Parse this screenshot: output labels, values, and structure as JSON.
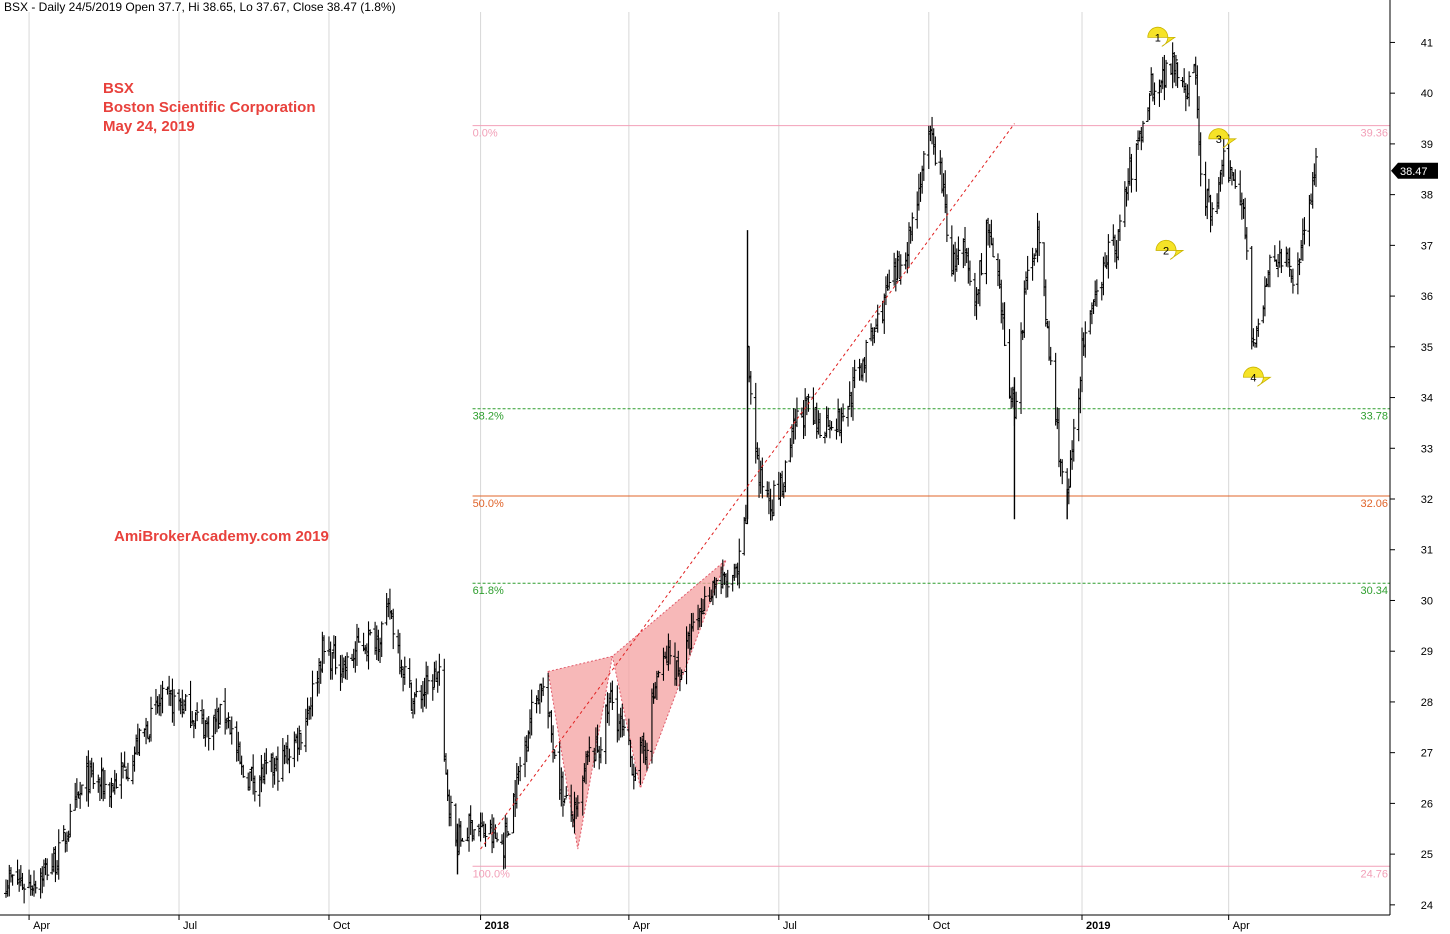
{
  "header": {
    "info": "BSX - Daily 24/5/2019 Open 37.7, Hi 38.65, Lo 37.67, Close 38.47 (1.8%)"
  },
  "title": {
    "symbol": "BSX",
    "company": "Boston Scientific Corporation",
    "date": "May 24, 2019"
  },
  "watermark": "AmiBrokerAcademy.com  2019",
  "colors": {
    "price": "#000000",
    "title": "#e8413c",
    "fib_pink": "#f2a0b8",
    "fib_green": "#2e9e2e",
    "fib_orange": "#e0642a",
    "wedge_fill": "#f4a0a0",
    "marker": "#f6e327",
    "grid": "#d8d8d8"
  },
  "chart_data": {
    "type": "ohlc",
    "y_axis_position": "right",
    "ylim": [
      23.8,
      41.6
    ],
    "y_ticks": [
      24,
      25,
      26,
      27,
      28,
      29,
      30,
      31,
      32,
      33,
      34,
      35,
      36,
      37,
      38,
      39,
      40,
      41
    ],
    "x_ticks": [
      {
        "label": "Apr",
        "date": "2017-04-03",
        "bold": false
      },
      {
        "label": "Jul",
        "date": "2017-07-03",
        "bold": false
      },
      {
        "label": "Oct",
        "date": "2017-10-02",
        "bold": false
      },
      {
        "label": "2018",
        "date": "2018-01-02",
        "bold": true
      },
      {
        "label": "Apr",
        "date": "2018-04-02",
        "bold": false
      },
      {
        "label": "Jul",
        "date": "2018-07-02",
        "bold": false
      },
      {
        "label": "Oct",
        "date": "2018-10-01",
        "bold": false
      },
      {
        "label": "2019",
        "date": "2019-01-02",
        "bold": true
      },
      {
        "label": "Apr",
        "date": "2019-04-01",
        "bold": false
      }
    ],
    "price_path": [
      [
        "2017-03-20",
        24.5
      ],
      [
        "2017-04-03",
        24.4
      ],
      [
        "2017-04-20",
        24.9
      ],
      [
        "2017-05-01",
        25.9
      ],
      [
        "2017-05-08",
        26.5
      ],
      [
        "2017-05-22",
        26.3
      ],
      [
        "2017-06-01",
        26.7
      ],
      [
        "2017-06-12",
        27.4
      ],
      [
        "2017-06-22",
        28.0
      ],
      [
        "2017-07-03",
        28.0
      ],
      [
        "2017-07-10",
        27.8
      ],
      [
        "2017-07-20",
        27.5
      ],
      [
        "2017-08-01",
        27.8
      ],
      [
        "2017-08-10",
        26.6
      ],
      [
        "2017-08-18",
        26.5
      ],
      [
        "2017-09-01",
        26.7
      ],
      [
        "2017-09-15",
        27.4
      ],
      [
        "2017-09-22",
        28.2
      ],
      [
        "2017-09-28",
        29.0
      ],
      [
        "2017-10-02",
        28.9
      ],
      [
        "2017-10-13",
        28.7
      ],
      [
        "2017-10-20",
        29.1
      ],
      [
        "2017-11-01",
        29.3
      ],
      [
        "2017-11-08",
        29.8
      ],
      [
        "2017-11-15",
        28.8
      ],
      [
        "2017-11-22",
        28.0
      ],
      [
        "2017-12-01",
        28.3
      ],
      [
        "2017-12-08",
        28.6
      ],
      [
        "2017-12-11",
        26.7
      ],
      [
        "2017-12-18",
        25.2
      ],
      [
        "2017-12-28",
        25.6
      ],
      [
        "2018-01-05",
        25.4
      ],
      [
        "2018-01-16",
        25.2
      ],
      [
        "2018-01-24",
        26.4
      ],
      [
        "2018-02-01",
        27.7
      ],
      [
        "2018-02-08",
        28.4
      ],
      [
        "2018-02-15",
        27.2
      ],
      [
        "2018-02-22",
        26.0
      ],
      [
        "2018-03-01",
        25.7
      ],
      [
        "2018-03-08",
        26.9
      ],
      [
        "2018-03-15",
        27.1
      ],
      [
        "2018-03-22",
        28.1
      ],
      [
        "2018-03-29",
        27.4
      ],
      [
        "2018-04-05",
        26.7
      ],
      [
        "2018-04-12",
        27.1
      ],
      [
        "2018-04-19",
        28.5
      ],
      [
        "2018-04-26",
        28.9
      ],
      [
        "2018-05-03",
        28.6
      ],
      [
        "2018-05-10",
        29.3
      ],
      [
        "2018-05-17",
        29.9
      ],
      [
        "2018-05-24",
        30.4
      ],
      [
        "2018-05-31",
        30.3
      ],
      [
        "2018-06-07",
        30.5
      ],
      [
        "2018-06-12",
        31.6
      ],
      [
        "2018-06-13",
        34.8
      ],
      [
        "2018-06-20",
        32.4
      ],
      [
        "2018-06-28",
        32.0
      ],
      [
        "2018-07-05",
        32.3
      ],
      [
        "2018-07-12",
        33.5
      ],
      [
        "2018-07-19",
        33.8
      ],
      [
        "2018-07-26",
        33.4
      ],
      [
        "2018-08-02",
        33.6
      ],
      [
        "2018-08-09",
        33.5
      ],
      [
        "2018-08-16",
        34.2
      ],
      [
        "2018-08-23",
        34.8
      ],
      [
        "2018-08-30",
        35.4
      ],
      [
        "2018-09-06",
        36.1
      ],
      [
        "2018-09-13",
        36.5
      ],
      [
        "2018-09-20",
        37.3
      ],
      [
        "2018-09-27",
        38.5
      ],
      [
        "2018-10-02",
        39.1
      ],
      [
        "2018-10-08",
        38.5
      ],
      [
        "2018-10-15",
        36.6
      ],
      [
        "2018-10-22",
        36.9
      ],
      [
        "2018-10-29",
        35.8
      ],
      [
        "2018-11-05",
        37.4
      ],
      [
        "2018-11-12",
        36.2
      ],
      [
        "2018-11-19",
        34.2
      ],
      [
        "2018-11-22",
        33.8
      ],
      [
        "2018-11-29",
        36.2
      ],
      [
        "2018-12-06",
        37.3
      ],
      [
        "2018-12-13",
        34.9
      ],
      [
        "2018-12-19",
        33.0
      ],
      [
        "2018-12-24",
        31.9
      ],
      [
        "2019-01-02",
        34.9
      ],
      [
        "2019-01-09",
        35.7
      ],
      [
        "2019-01-16",
        36.8
      ],
      [
        "2019-01-23",
        37.0
      ],
      [
        "2019-01-30",
        38.3
      ],
      [
        "2019-02-06",
        39.1
      ],
      [
        "2019-02-13",
        40.2
      ],
      [
        "2019-02-20",
        40.3
      ],
      [
        "2019-02-27",
        40.7
      ],
      [
        "2019-03-06",
        40.1
      ],
      [
        "2019-03-12",
        40.4
      ],
      [
        "2019-03-15",
        38.3
      ],
      [
        "2019-03-22",
        37.5
      ],
      [
        "2019-03-29",
        38.6
      ],
      [
        "2019-04-05",
        38.3
      ],
      [
        "2019-04-10",
        37.9
      ],
      [
        "2019-04-15",
        35.2
      ],
      [
        "2019-04-20",
        35.4
      ],
      [
        "2019-04-27",
        36.8
      ],
      [
        "2019-05-04",
        36.7
      ],
      [
        "2019-05-11",
        36.3
      ],
      [
        "2019-05-18",
        37.6
      ],
      [
        "2019-05-24",
        38.47
      ]
    ],
    "spikes": [
      {
        "date": "2018-06-13",
        "low": 31.6,
        "high": 37.3
      },
      {
        "date": "2018-11-22",
        "low": 31.6,
        "high": 34.4
      },
      {
        "date": "2018-12-24",
        "low": 31.6,
        "high": 32.2
      },
      {
        "date": "2017-12-19",
        "low": 24.6,
        "high": 25.6
      }
    ],
    "last_price": {
      "value": 38.47,
      "label": "38.47"
    },
    "fib_levels": [
      {
        "pct": "0.0%",
        "price": 39.36,
        "label": "39.36",
        "color": "#f2a0b8",
        "style": "solid"
      },
      {
        "pct": "38.2%",
        "price": 33.78,
        "label": "33.78",
        "color": "#2e9e2e",
        "style": "dashed"
      },
      {
        "pct": "50.0%",
        "price": 32.06,
        "label": "32.06",
        "color": "#e0642a",
        "style": "solid"
      },
      {
        "pct": "61.8%",
        "price": 30.34,
        "label": "30.34",
        "color": "#2e9e2e",
        "style": "dashed"
      },
      {
        "pct": "100.0%",
        "price": 24.76,
        "label": "24.76",
        "color": "#f2a0b8",
        "style": "solid"
      }
    ],
    "fib_range": {
      "start_date": "2018-01-02",
      "end_date": "2019-03-31"
    },
    "fib_trendline": {
      "from": [
        "2018-01-02",
        25.1
      ],
      "to": [
        "2018-11-22",
        39.4
      ]
    },
    "wedge": {
      "upper": [
        [
          "2018-02-12",
          28.6
        ],
        [
          "2018-03-23",
          28.9
        ],
        [
          "2018-05-31",
          30.8
        ]
      ],
      "lower": [
        [
          "2018-02-12",
          28.6
        ],
        [
          "2018-03-02",
          25.1
        ],
        [
          "2018-03-23",
          28.9
        ],
        [
          "2018-04-09",
          26.3
        ],
        [
          "2018-05-31",
          30.8
        ]
      ]
    },
    "markers": [
      {
        "label": "1",
        "date": "2019-02-17",
        "price": 41.1
      },
      {
        "label": "2",
        "date": "2019-02-22",
        "price": 36.9
      },
      {
        "label": "3",
        "date": "2019-03-26",
        "price": 39.1
      },
      {
        "label": "4",
        "date": "2019-04-16",
        "price": 34.4
      }
    ]
  }
}
